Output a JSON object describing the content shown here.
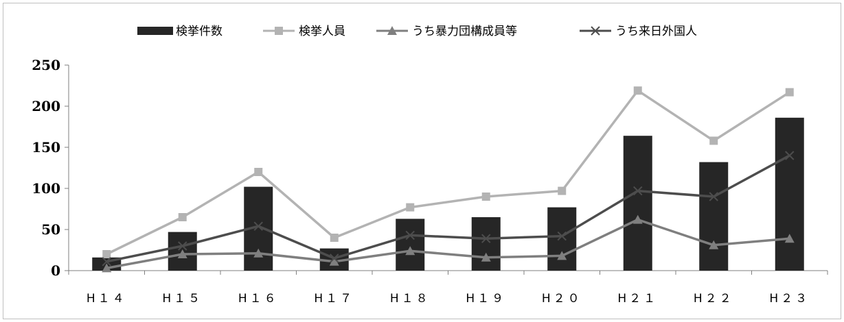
{
  "chart_data": {
    "type": "bar",
    "categories": [
      "H１４",
      "H１５",
      "H１６",
      "H１７",
      "H１８",
      "H１９",
      "H２０",
      "H２１",
      "H２２",
      "H２３"
    ],
    "series": [
      {
        "name": "検挙件数",
        "kind": "bar",
        "color": "#262626",
        "marker": "none",
        "values": [
          16,
          47,
          102,
          27,
          63,
          65,
          77,
          164,
          132,
          186
        ]
      },
      {
        "name": "検挙人員",
        "kind": "line",
        "color": "#b3b3b3",
        "marker": "square",
        "values": [
          20,
          65,
          120,
          40,
          77,
          90,
          97,
          219,
          158,
          217
        ]
      },
      {
        "name": "うち暴力団構成員等",
        "kind": "line",
        "color": "#7f7f7f",
        "marker": "triangle",
        "values": [
          3,
          20,
          21,
          11,
          24,
          16,
          18,
          62,
          31,
          39
        ]
      },
      {
        "name": "うち来日外国人",
        "kind": "line",
        "color": "#4d4d4d",
        "marker": "x",
        "values": [
          11,
          30,
          54,
          15,
          43,
          39,
          42,
          97,
          90,
          140
        ]
      }
    ],
    "ylim": [
      0,
      250
    ],
    "yticks": [
      "0",
      "50",
      "100",
      "150",
      "200",
      "250"
    ],
    "grid": false,
    "legend_position": "top"
  }
}
